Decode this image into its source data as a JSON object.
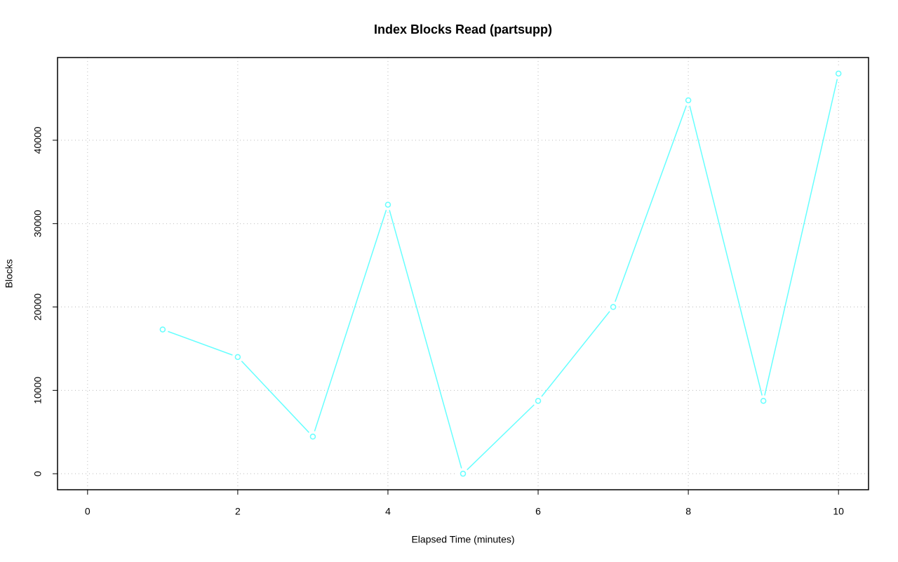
{
  "chart_data": {
    "type": "line",
    "title": "Index Blocks Read (partsupp)",
    "x_label": "Elapsed Time (minutes)",
    "y_label": "Blocks",
    "x": [
      1,
      2,
      3,
      4,
      5,
      6,
      7,
      8,
      9,
      10
    ],
    "series": [
      {
        "name": "partsupp",
        "color": "#66ffff",
        "values": [
          17300,
          14000,
          4450,
          32270,
          0,
          8740,
          20000,
          44790,
          8740,
          48000
        ]
      }
    ],
    "xlim": [
      -0.4,
      10.4
    ],
    "xticks": [
      0,
      2,
      4,
      6,
      8,
      10
    ],
    "ylim": [
      -1920,
      49920
    ],
    "yticks": [
      0,
      10000,
      20000,
      30000,
      40000
    ],
    "grid": true
  }
}
